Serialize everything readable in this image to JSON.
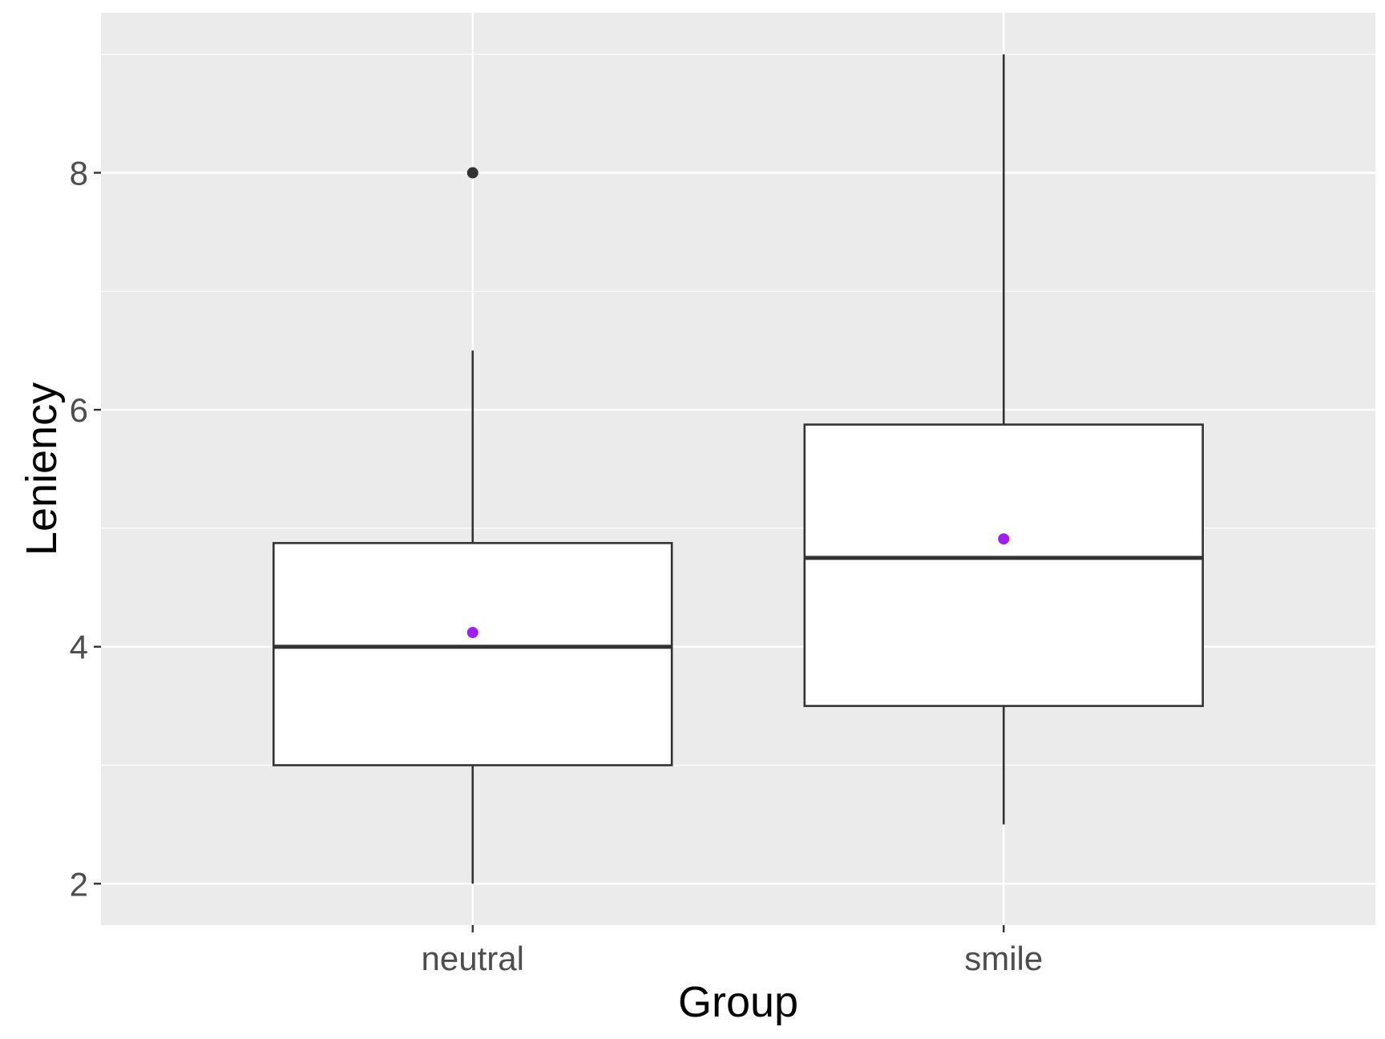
{
  "chart_data": {
    "type": "boxplot",
    "title": "",
    "xlabel": "Group",
    "ylabel": "Leniency",
    "ylim": [
      1.65,
      9.35
    ],
    "yticks": [
      2,
      4,
      6,
      8
    ],
    "yminor": [
      3,
      5,
      7,
      9
    ],
    "grid": true,
    "legend": "none",
    "categories": [
      "neutral",
      "smile"
    ],
    "boxes": [
      {
        "category": "neutral",
        "whisker_low": 2.0,
        "q1": 3.0,
        "median": 4.0,
        "q3": 4.875,
        "whisker_high": 6.5,
        "mean": 4.12,
        "outliers": [
          8.0
        ]
      },
      {
        "category": "smile",
        "whisker_low": 2.5,
        "q1": 3.5,
        "median": 4.75,
        "q3": 5.875,
        "whisker_high": 9.0,
        "mean": 4.91,
        "outliers": []
      }
    ],
    "colors": {
      "panel": "#ebebeb",
      "grid": "#ffffff",
      "box_fill": "#ffffff",
      "box_line": "#333333",
      "mean_point": "#a020f0",
      "outlier_point": "#333333"
    }
  }
}
